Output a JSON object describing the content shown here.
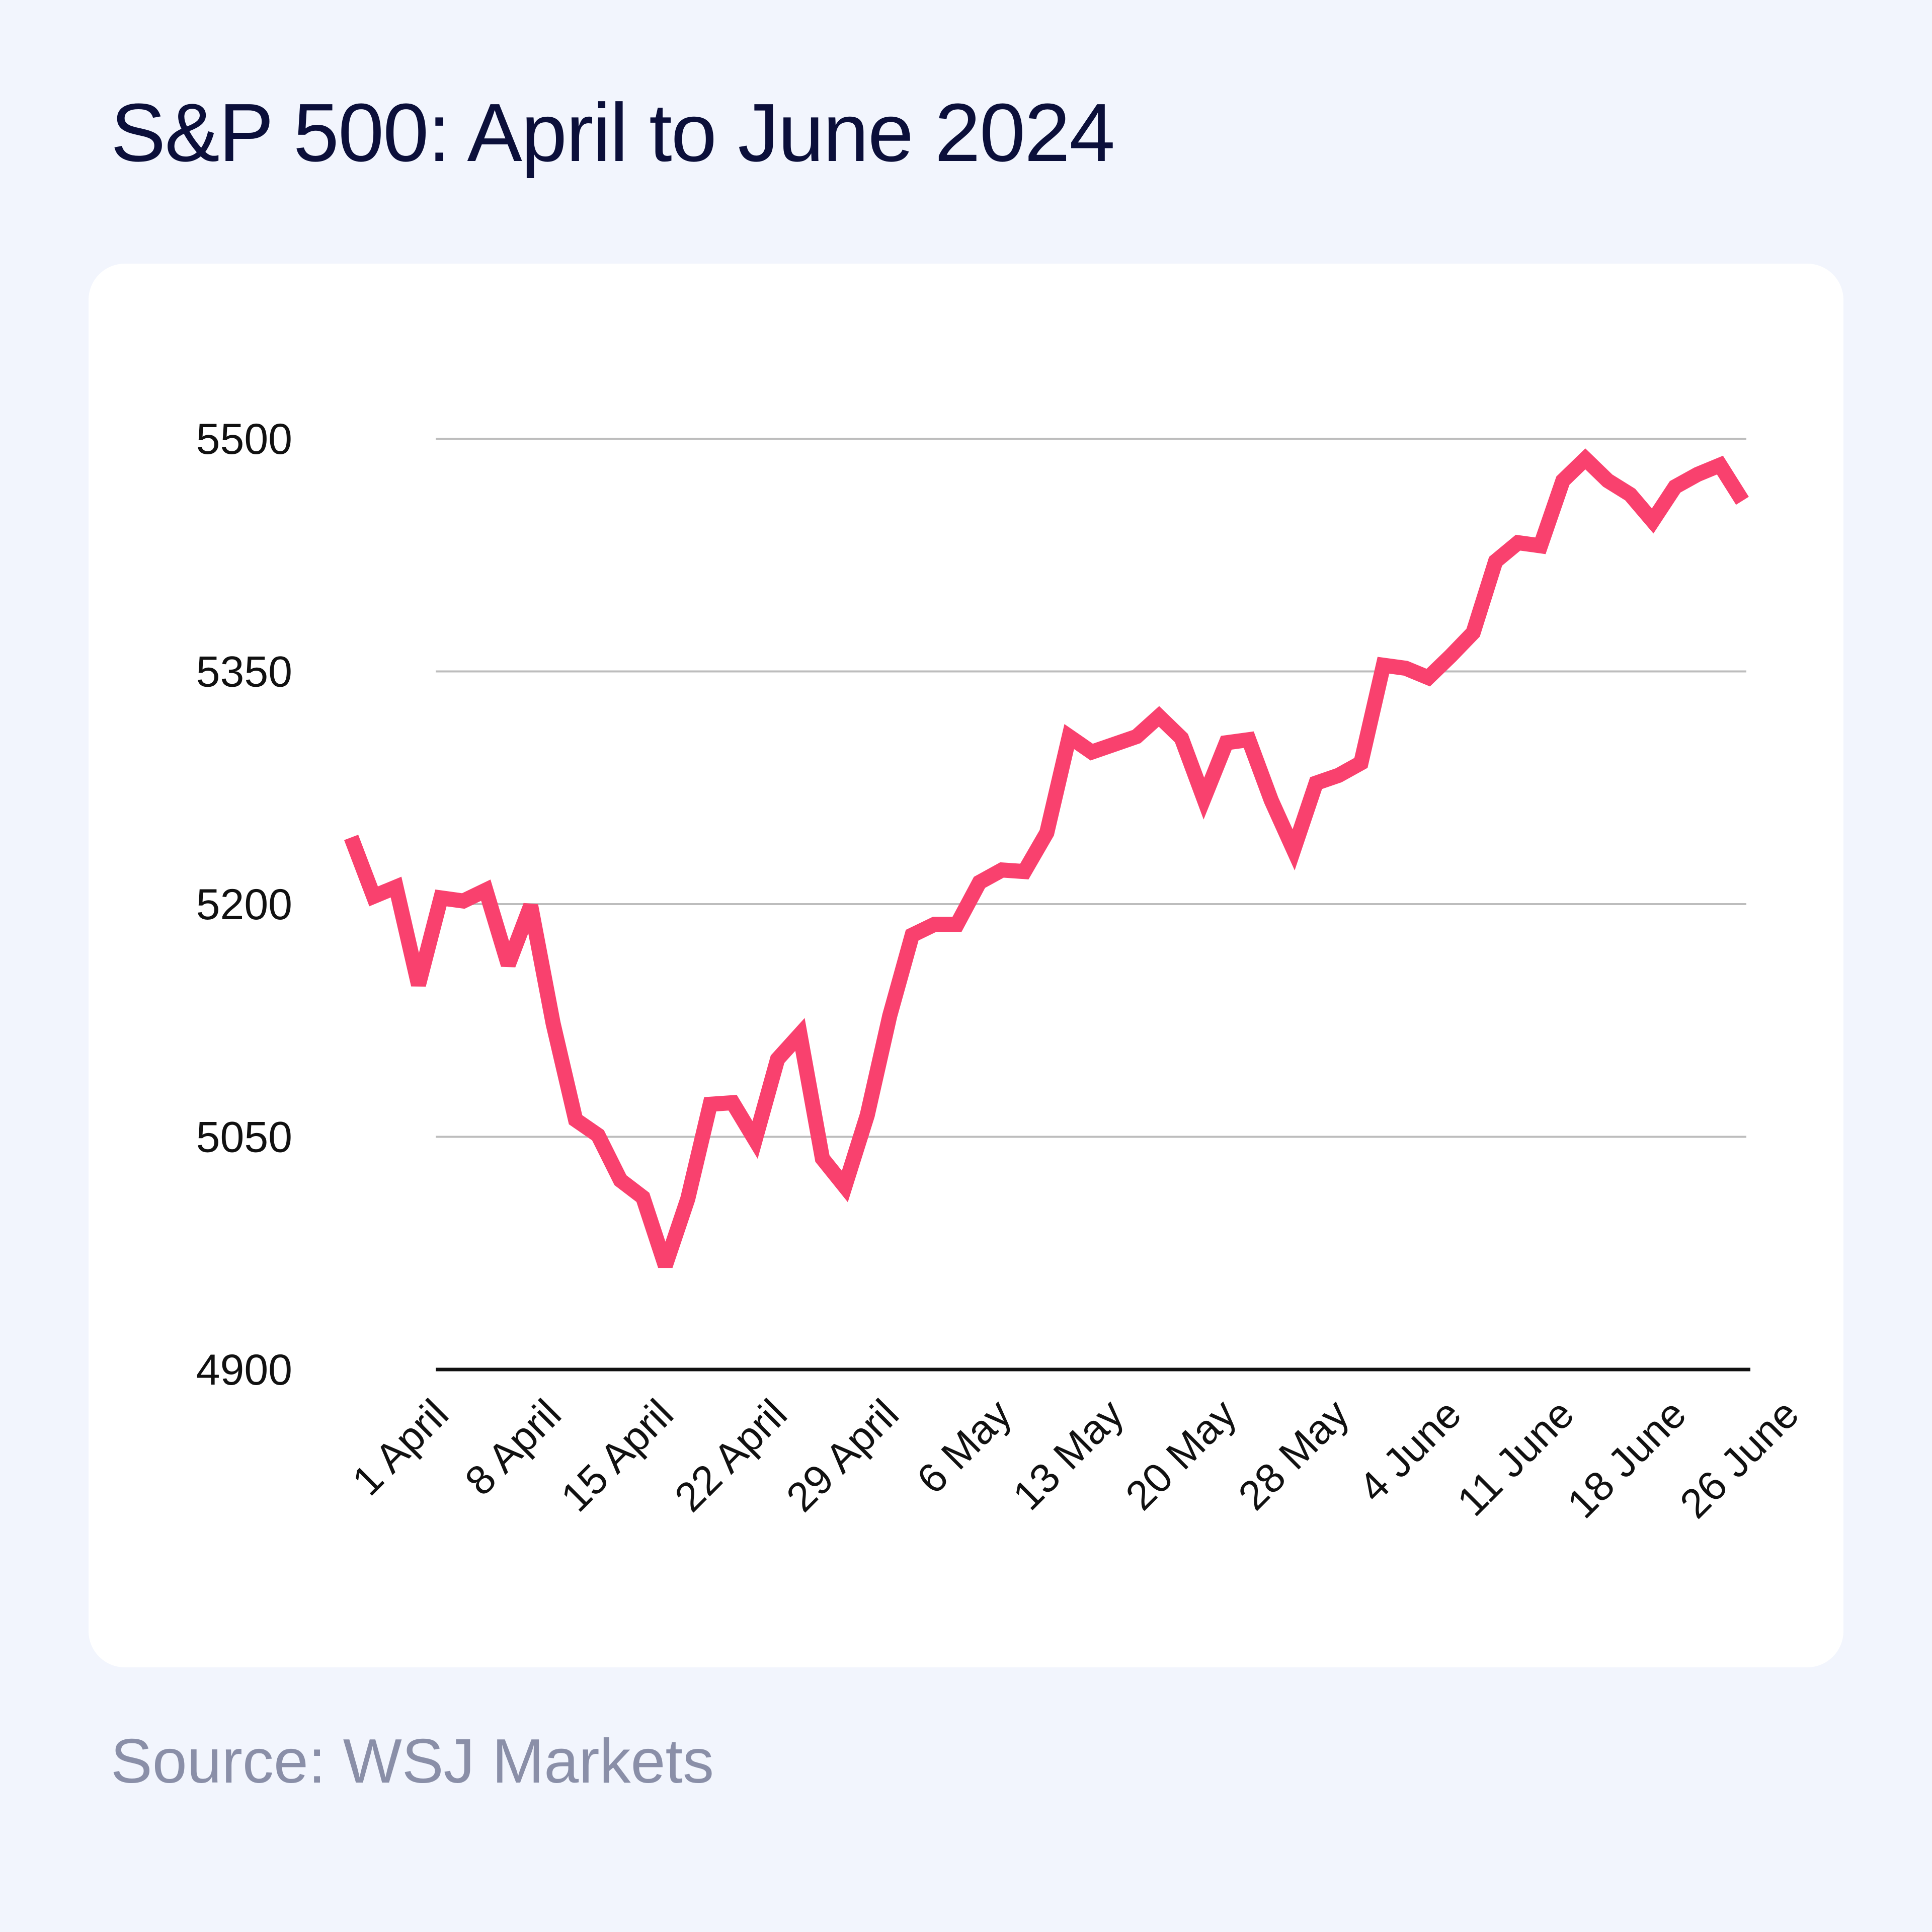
{
  "title": "S&P 500: April to June 2024",
  "source": "Source: WSJ Markets",
  "colors": {
    "background": "#F2F5FD",
    "card": "#FFFFFF",
    "line": "#F9416E",
    "title": "#0B0F3A",
    "source": "#8A8FA8",
    "grid": "#BDBDBD",
    "axis": "#111111"
  },
  "chart_data": {
    "type": "line",
    "title": "S&P 500: April to June 2024",
    "xlabel": "",
    "ylabel": "",
    "ylim": [
      4900,
      5500
    ],
    "yticks": [
      4900,
      5050,
      5200,
      5350,
      5500
    ],
    "grid": true,
    "legend": "none",
    "x_tick_labels": [
      "1 April",
      "8 April",
      "15 April",
      "22 April",
      "29 April",
      "6 May",
      "13 May",
      "20 May",
      "28 May",
      "4 June",
      "11 June",
      "18 June",
      "26 June"
    ],
    "x": [
      "2024-04-01",
      "2024-04-02",
      "2024-04-03",
      "2024-04-04",
      "2024-04-05",
      "2024-04-08",
      "2024-04-09",
      "2024-04-10",
      "2024-04-11",
      "2024-04-12",
      "2024-04-15",
      "2024-04-16",
      "2024-04-17",
      "2024-04-18",
      "2024-04-19",
      "2024-04-22",
      "2024-04-23",
      "2024-04-24",
      "2024-04-25",
      "2024-04-26",
      "2024-04-29",
      "2024-04-30",
      "2024-05-01",
      "2024-05-02",
      "2024-05-03",
      "2024-05-06",
      "2024-05-07",
      "2024-05-08",
      "2024-05-09",
      "2024-05-10",
      "2024-05-13",
      "2024-05-14",
      "2024-05-15",
      "2024-05-16",
      "2024-05-17",
      "2024-05-20",
      "2024-05-21",
      "2024-05-22",
      "2024-05-23",
      "2024-05-24",
      "2024-05-28",
      "2024-05-29",
      "2024-05-30",
      "2024-05-31",
      "2024-06-03",
      "2024-06-04",
      "2024-06-05",
      "2024-06-06",
      "2024-06-07",
      "2024-06-10",
      "2024-06-11",
      "2024-06-12",
      "2024-06-13",
      "2024-06-14",
      "2024-06-17",
      "2024-06-18",
      "2024-06-20",
      "2024-06-21",
      "2024-06-24",
      "2024-06-25",
      "2024-06-26",
      "2024-06-27",
      "2024-06-28"
    ],
    "series": [
      {
        "values": [
          5243,
          5205,
          5211,
          5148,
          5204,
          5202,
          5209,
          5161,
          5199,
          5123,
          5061,
          5051,
          5022,
          5011,
          4967,
          5010,
          5071,
          5072,
          5048,
          5100,
          5116,
          5036,
          5018,
          5064,
          5128,
          5180,
          5187,
          5187,
          5214,
          5222,
          5221,
          5246,
          5308,
          5298,
          5303,
          5308,
          5321,
          5307,
          5268,
          5304,
          5306,
          5267,
          5235,
          5278,
          5283,
          5291,
          5354,
          5352,
          5346,
          5360,
          5375,
          5421,
          5433,
          5431,
          5473,
          5487,
          5473,
          5464,
          5447,
          5469,
          5477,
          5483,
          5460
        ]
      }
    ]
  }
}
